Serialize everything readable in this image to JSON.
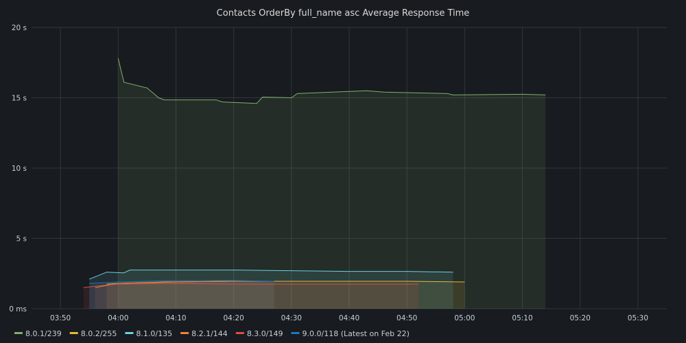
{
  "chart_data": {
    "type": "area",
    "title": "Contacts OrderBy full_name asc Average Response Time",
    "xlabel": "",
    "ylabel": "",
    "x_range": [
      "03:45",
      "05:35"
    ],
    "ylim": [
      0,
      20
    ],
    "y_ticks": [
      {
        "value": 0,
        "label": "0 ms"
      },
      {
        "value": 5,
        "label": "5 s"
      },
      {
        "value": 10,
        "label": "10 s"
      },
      {
        "value": 15,
        "label": "15 s"
      },
      {
        "value": 20,
        "label": "20 s"
      }
    ],
    "x_ticks": [
      "03:50",
      "04:00",
      "04:10",
      "04:20",
      "04:30",
      "04:40",
      "04:50",
      "05:00",
      "05:10",
      "05:20",
      "05:30"
    ],
    "grid": true,
    "legend_position": "bottom-left",
    "series": [
      {
        "name": "8.0.1/239",
        "color": "#7eb26d",
        "x": [
          "04:00",
          "04:01",
          "04:05",
          "04:07",
          "04:08",
          "04:12",
          "04:17",
          "04:18",
          "04:24",
          "04:25",
          "04:30",
          "04:31",
          "04:43",
          "04:46",
          "04:57",
          "04:58",
          "05:10",
          "05:14"
        ],
        "y": [
          17.8,
          16.1,
          15.7,
          15.0,
          14.85,
          14.85,
          14.85,
          14.7,
          14.6,
          15.05,
          15.0,
          15.3,
          15.5,
          15.4,
          15.3,
          15.2,
          15.25,
          15.2
        ]
      },
      {
        "name": "8.0.2/255",
        "color": "#eab839",
        "x": [
          "03:58",
          "04:00",
          "04:08",
          "04:20",
          "04:30",
          "04:40",
          "04:50",
          "05:00"
        ],
        "y": [
          1.75,
          1.8,
          1.9,
          1.95,
          1.95,
          1.95,
          1.95,
          1.9
        ]
      },
      {
        "name": "8.1.0/135",
        "color": "#6ed0e0",
        "x": [
          "03:55",
          "03:58",
          "04:01",
          "04:02",
          "04:08",
          "04:10",
          "04:20",
          "04:30",
          "04:40",
          "04:50",
          "04:58"
        ],
        "y": [
          2.1,
          2.6,
          2.55,
          2.75,
          2.75,
          2.75,
          2.75,
          2.7,
          2.65,
          2.65,
          2.6
        ]
      },
      {
        "name": "8.2.1/144",
        "color": "#ef843c",
        "x": [
          "03:56",
          "03:58",
          "04:00",
          "04:10",
          "04:20",
          "04:27"
        ],
        "y": [
          1.5,
          1.65,
          1.8,
          1.9,
          1.95,
          1.95
        ]
      },
      {
        "name": "8.3.0/149",
        "color": "#e24d42",
        "x": [
          "03:54",
          "03:57",
          "04:00",
          "04:10",
          "04:20",
          "04:30",
          "04:40",
          "04:52"
        ],
        "y": [
          1.5,
          1.65,
          1.75,
          1.8,
          1.75,
          1.75,
          1.75,
          1.75
        ]
      },
      {
        "name": "9.0.0/118 (Latest on Feb 22)",
        "color": "#1f78c1",
        "x": [
          "03:55",
          "03:58",
          "04:00",
          "04:10",
          "04:20",
          "04:27"
        ],
        "y": [
          1.8,
          1.85,
          1.9,
          2.0,
          2.0,
          1.95
        ]
      }
    ]
  }
}
